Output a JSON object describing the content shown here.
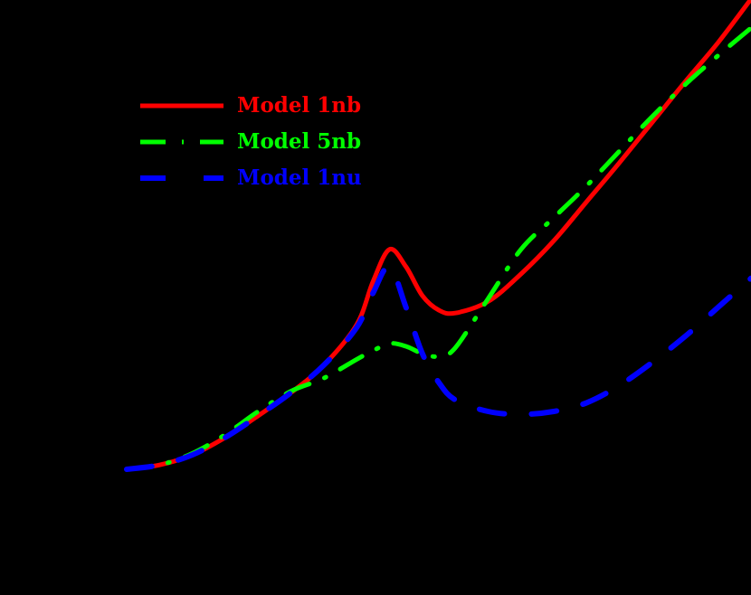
{
  "chart_data": {
    "type": "line",
    "title": "",
    "xlabel": "",
    "ylabel": "",
    "grid": false,
    "legend_position": "upper-left",
    "background": "#000000",
    "x": [
      0,
      10,
      20,
      30,
      40,
      50,
      60,
      70,
      75,
      80,
      85,
      90,
      95,
      100,
      110,
      120,
      130,
      140,
      150,
      160,
      170,
      180,
      190
    ],
    "series": [
      {
        "name": "Model 1nb",
        "color": "#ff0000",
        "style": "solid",
        "values": [
          0,
          3,
          10,
          22,
          37,
          53,
          72,
          100,
          130,
          152,
          140,
          120,
          110,
          108,
          116,
          135,
          158,
          185,
          212,
          240,
          268,
          295,
          325
        ]
      },
      {
        "name": "Model 5nb",
        "color": "#00ff00",
        "style": "dash-dot",
        "values": [
          0,
          3,
          11,
          24,
          40,
          54,
          63,
          76,
          82,
          87,
          85,
          80,
          78,
          84,
          118,
          152,
          174,
          196,
          220,
          244,
          266,
          286,
          305
        ]
      },
      {
        "name": "Model 1nu",
        "color": "#0000ff",
        "style": "dashed",
        "values": [
          0,
          3,
          10,
          22,
          37,
          53,
          72,
          98,
          122,
          140,
          112,
          80,
          60,
          48,
          40,
          38,
          40,
          46,
          58,
          74,
          92,
          112,
          132
        ]
      }
    ]
  },
  "legend": {
    "items": [
      {
        "label": "Model 1nb",
        "color": "#ff0000"
      },
      {
        "label": "Model 5nb",
        "color": "#00ff00"
      },
      {
        "label": "Model 1nu",
        "color": "#0000ff"
      }
    ]
  }
}
